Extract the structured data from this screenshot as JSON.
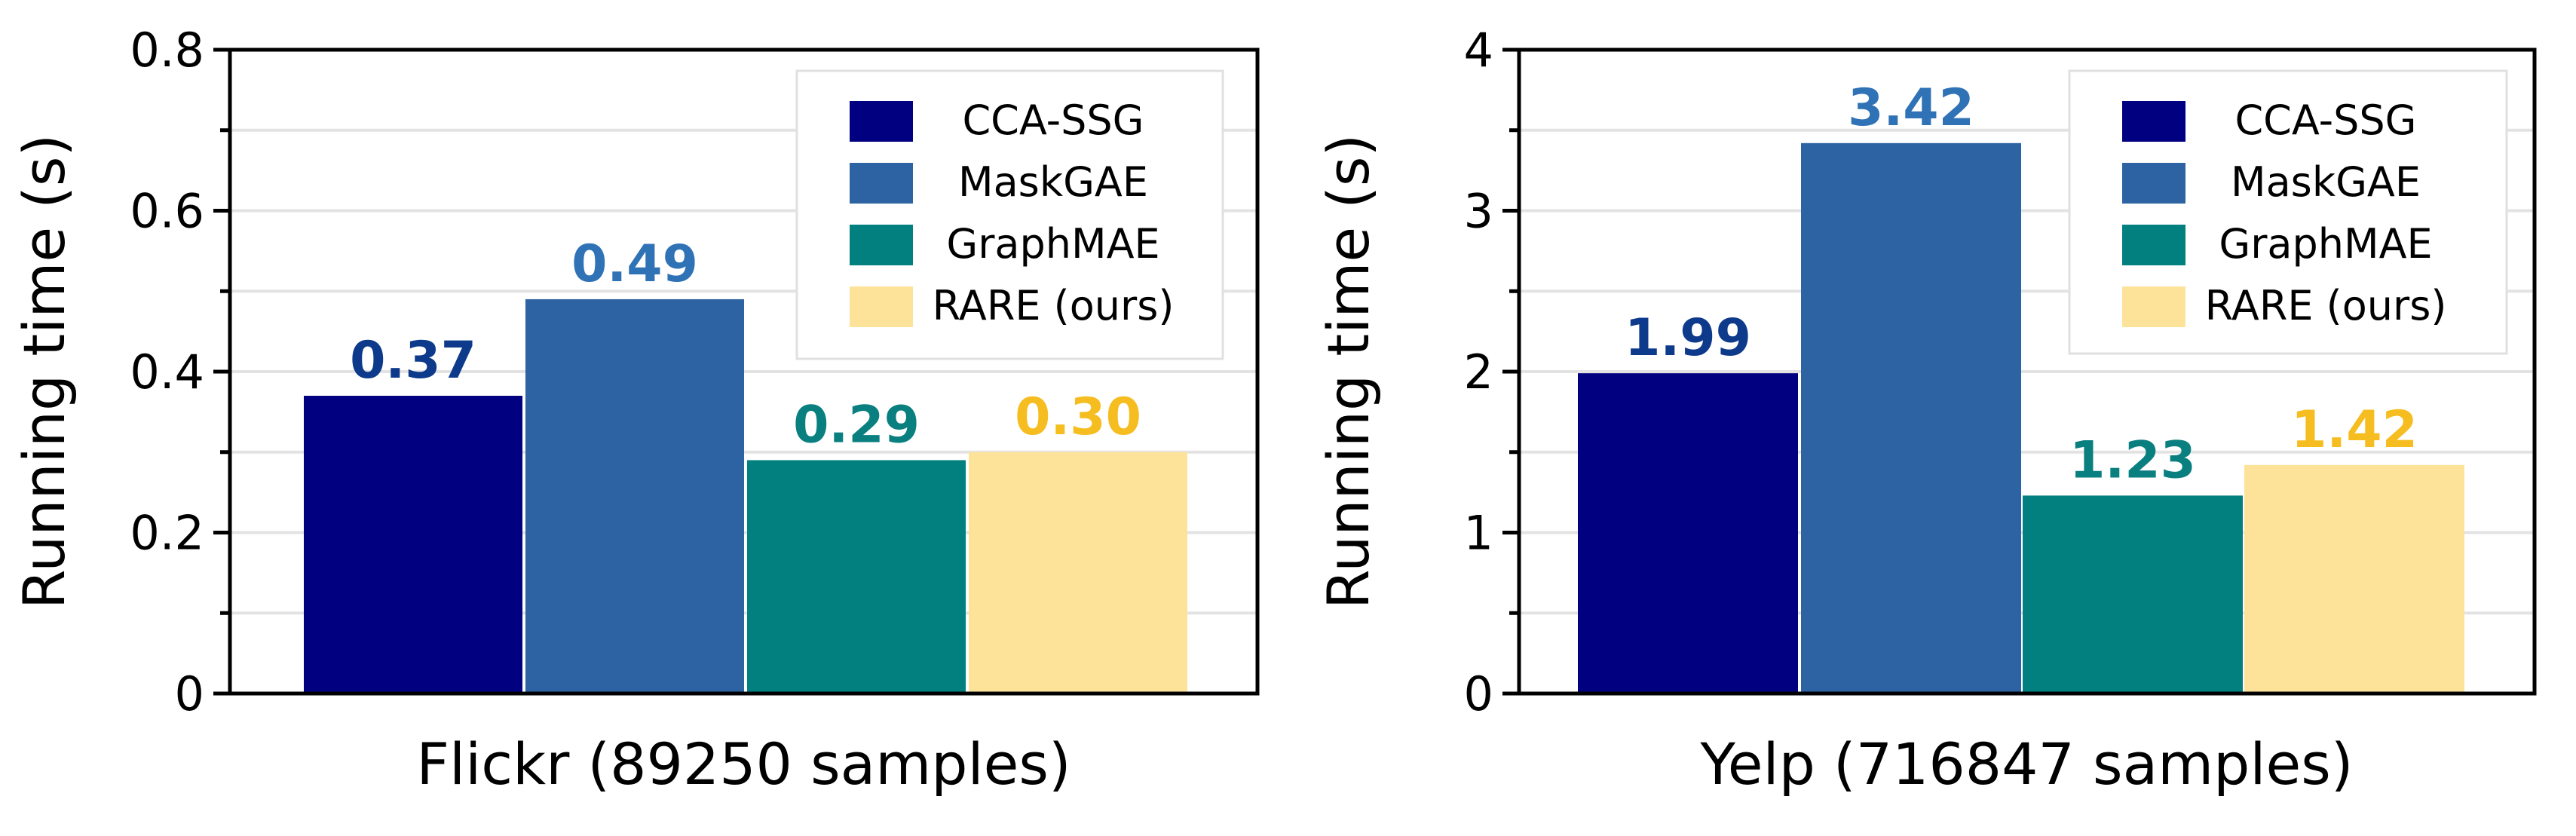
{
  "chart_data": [
    {
      "type": "bar",
      "title": "",
      "xlabel": "Flickr (89250 samples)",
      "ylabel": "Running time (s)",
      "ylim": [
        0,
        0.8
      ],
      "yticks": [
        0,
        0.2,
        0.4,
        0.6,
        0.8
      ],
      "ytick_labels": [
        "0",
        "0.2",
        "0.4",
        "0.6",
        "0.8"
      ],
      "grid": true,
      "legend_position": "top-right",
      "categories": [
        "CCA-SSG",
        "MaskGAE",
        "GraphMAE",
        "RARE (ours)"
      ],
      "values": [
        0.37,
        0.49,
        0.29,
        0.3
      ],
      "value_labels": [
        "0.37",
        "0.49",
        "0.29",
        "0.30"
      ]
    },
    {
      "type": "bar",
      "title": "",
      "xlabel": "Yelp (716847 samples)",
      "ylabel": "Running time (s)",
      "ylim": [
        0,
        4
      ],
      "yticks": [
        0,
        1,
        2,
        3,
        4
      ],
      "ytick_labels": [
        "0",
        "1",
        "2",
        "3",
        "4"
      ],
      "grid": true,
      "legend_position": "top-right",
      "categories": [
        "CCA-SSG",
        "MaskGAE",
        "GraphMAE",
        "RARE (ours)"
      ],
      "values": [
        1.99,
        3.42,
        1.23,
        1.42
      ],
      "value_labels": [
        "1.99",
        "3.42",
        "1.23",
        "1.42"
      ]
    }
  ],
  "colors": {
    "bars": [
      "#010080",
      "#2d62a3",
      "#028080",
      "#fde39a"
    ],
    "labels": [
      "#0e3a8c",
      "#2f72b5",
      "#0a7f80",
      "#f5bd1f"
    ],
    "grid": "#e3e3e3",
    "axis": "#000000"
  }
}
